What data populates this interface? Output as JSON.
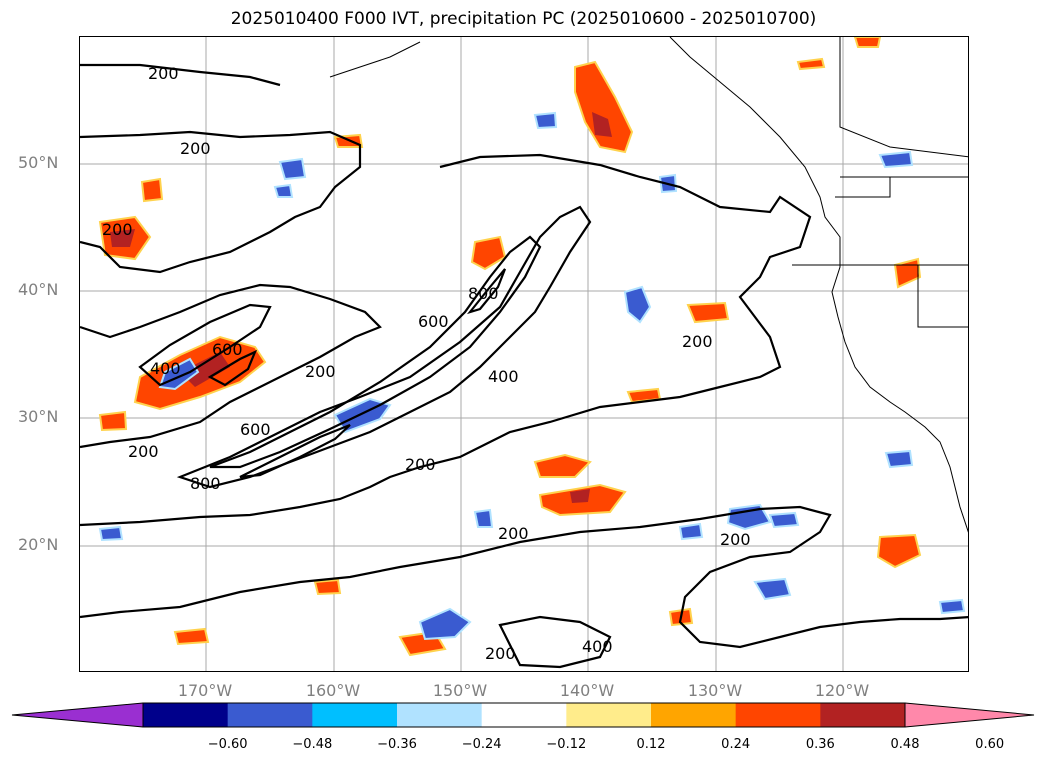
{
  "title": "2025010400 F000 IVT, precipitation PC (2025010600 - 2025010700)",
  "lat_labels": [
    "50°N",
    "40°N",
    "30°N",
    "20°N"
  ],
  "lon_labels": [
    "170°W",
    "160°W",
    "150°W",
    "140°W",
    "130°W",
    "120°W"
  ],
  "contour_labels": [
    "200",
    "400",
    "600",
    "800"
  ],
  "colorbar": {
    "ticks": [
      "−0.60",
      "−0.48",
      "−0.36",
      "−0.24",
      "−0.12",
      "0.12",
      "0.24",
      "0.36",
      "0.48",
      "0.60"
    ],
    "colors": [
      "#9a2fd1",
      "#00008b",
      "#3a5bd0",
      "#00bfff",
      "#b0e2ff",
      "#ffffff",
      "#ffec8b",
      "#ffa500",
      "#ff4500",
      "#b22222",
      "#ff88aa"
    ]
  },
  "colors": {
    "ivt_contour": "#000000",
    "grid": "#a9a9a9",
    "coast": "#000000"
  }
}
